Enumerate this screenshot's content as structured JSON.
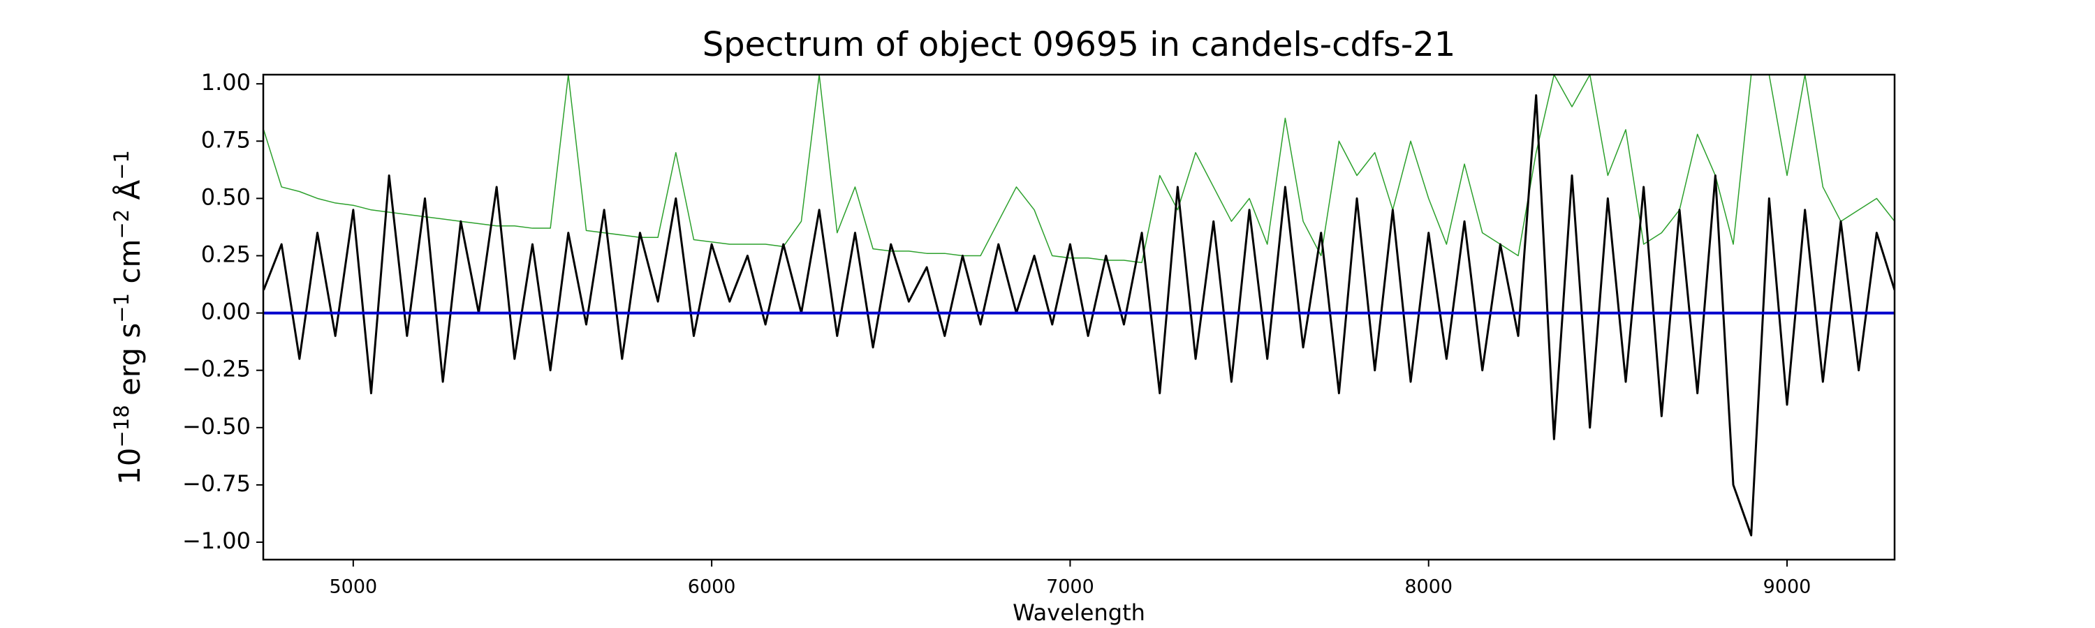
{
  "chart_data": {
    "type": "line",
    "title": "Spectrum of object 09695 in candels-cdfs-21",
    "x_label": "Wavelength",
    "y_label_parts": [
      "10",
      "−18",
      " erg s",
      "−1",
      " cm",
      "−2",
      " Å",
      "−1"
    ],
    "xlim": [
      4749,
      9300
    ],
    "ylim": [
      -1.076,
      1.04
    ],
    "xticks": [
      5000,
      6000,
      7000,
      8000,
      9000
    ],
    "yticks": [
      {
        "value": 1.0,
        "label": "1.00"
      },
      {
        "value": 0.75,
        "label": "0.75"
      },
      {
        "value": 0.5,
        "label": "0.50"
      },
      {
        "value": 0.25,
        "label": "0.25"
      },
      {
        "value": 0.0,
        "label": "0.00"
      },
      {
        "value": -0.25,
        "label": "−0.25"
      },
      {
        "value": -0.5,
        "label": "−0.50"
      },
      {
        "value": -0.75,
        "label": "−0.75"
      },
      {
        "value": -1.0,
        "label": "−1.00"
      }
    ],
    "x": [
      4750,
      4800,
      4850,
      4900,
      4950,
      5000,
      5050,
      5100,
      5150,
      5200,
      5250,
      5300,
      5350,
      5400,
      5450,
      5500,
      5550,
      5600,
      5650,
      5700,
      5750,
      5800,
      5850,
      5900,
      5950,
      6000,
      6050,
      6100,
      6150,
      6200,
      6250,
      6300,
      6350,
      6400,
      6450,
      6500,
      6550,
      6600,
      6650,
      6700,
      6750,
      6800,
      6850,
      6900,
      6950,
      7000,
      7050,
      7100,
      7150,
      7200,
      7250,
      7300,
      7350,
      7400,
      7450,
      7500,
      7550,
      7600,
      7650,
      7700,
      7750,
      7800,
      7850,
      7900,
      7950,
      8000,
      8050,
      8100,
      8150,
      8200,
      8250,
      8300,
      8350,
      8400,
      8450,
      8500,
      8550,
      8600,
      8650,
      8700,
      8750,
      8800,
      8850,
      8900,
      8950,
      9000,
      9050,
      9100,
      9150,
      9200,
      9250,
      9300
    ],
    "series": [
      {
        "color": "#2ca02c",
        "width": 1.5,
        "values": [
          0.8,
          0.55,
          0.53,
          0.5,
          0.48,
          0.47,
          0.45,
          0.44,
          0.43,
          0.42,
          0.41,
          0.4,
          0.39,
          0.38,
          0.38,
          0.37,
          0.37,
          1.04,
          0.36,
          0.35,
          0.34,
          0.33,
          0.33,
          0.7,
          0.32,
          0.31,
          0.3,
          0.3,
          0.3,
          0.29,
          0.4,
          1.04,
          0.35,
          0.55,
          0.28,
          0.27,
          0.27,
          0.26,
          0.26,
          0.25,
          0.25,
          0.4,
          0.55,
          0.45,
          0.25,
          0.24,
          0.24,
          0.23,
          0.23,
          0.22,
          0.6,
          0.45,
          0.7,
          0.55,
          0.4,
          0.5,
          0.3,
          0.85,
          0.4,
          0.25,
          0.75,
          0.6,
          0.7,
          0.45,
          0.75,
          0.5,
          0.3,
          0.65,
          0.35,
          0.3,
          0.25,
          0.7,
          1.04,
          0.9,
          1.04,
          0.6,
          0.8,
          0.3,
          0.35,
          0.45,
          0.78,
          0.6,
          0.3,
          1.04,
          1.04,
          0.6,
          1.04,
          0.55,
          0.4,
          0.45,
          0.5,
          0.4
        ]
      },
      {
        "color": "#000000",
        "width": 3,
        "values": [
          0.1,
          0.3,
          -0.2,
          0.35,
          -0.1,
          0.45,
          -0.35,
          0.6,
          -0.1,
          0.5,
          -0.3,
          0.4,
          0.0,
          0.55,
          -0.2,
          0.3,
          -0.25,
          0.35,
          -0.05,
          0.45,
          -0.2,
          0.35,
          0.05,
          0.5,
          -0.1,
          0.3,
          0.05,
          0.25,
          -0.05,
          0.3,
          0.0,
          0.45,
          -0.1,
          0.35,
          -0.15,
          0.3,
          0.05,
          0.2,
          -0.1,
          0.25,
          -0.05,
          0.3,
          0.0,
          0.25,
          -0.05,
          0.3,
          -0.1,
          0.25,
          -0.05,
          0.35,
          -0.35,
          0.55,
          -0.2,
          0.4,
          -0.3,
          0.45,
          -0.2,
          0.55,
          -0.15,
          0.35,
          -0.35,
          0.5,
          -0.25,
          0.45,
          -0.3,
          0.35,
          -0.2,
          0.4,
          -0.25,
          0.3,
          -0.1,
          0.95,
          -0.55,
          0.6,
          -0.5,
          0.5,
          -0.3,
          0.55,
          -0.45,
          0.45,
          -0.35,
          0.6,
          -0.75,
          -0.97,
          0.5,
          -0.4,
          0.45,
          -0.3,
          0.4,
          -0.25,
          0.35,
          0.1
        ]
      },
      {
        "color": "#0000cc",
        "width": 4,
        "x": [
          4749,
          9300
        ],
        "values": [
          0,
          0
        ]
      }
    ]
  }
}
